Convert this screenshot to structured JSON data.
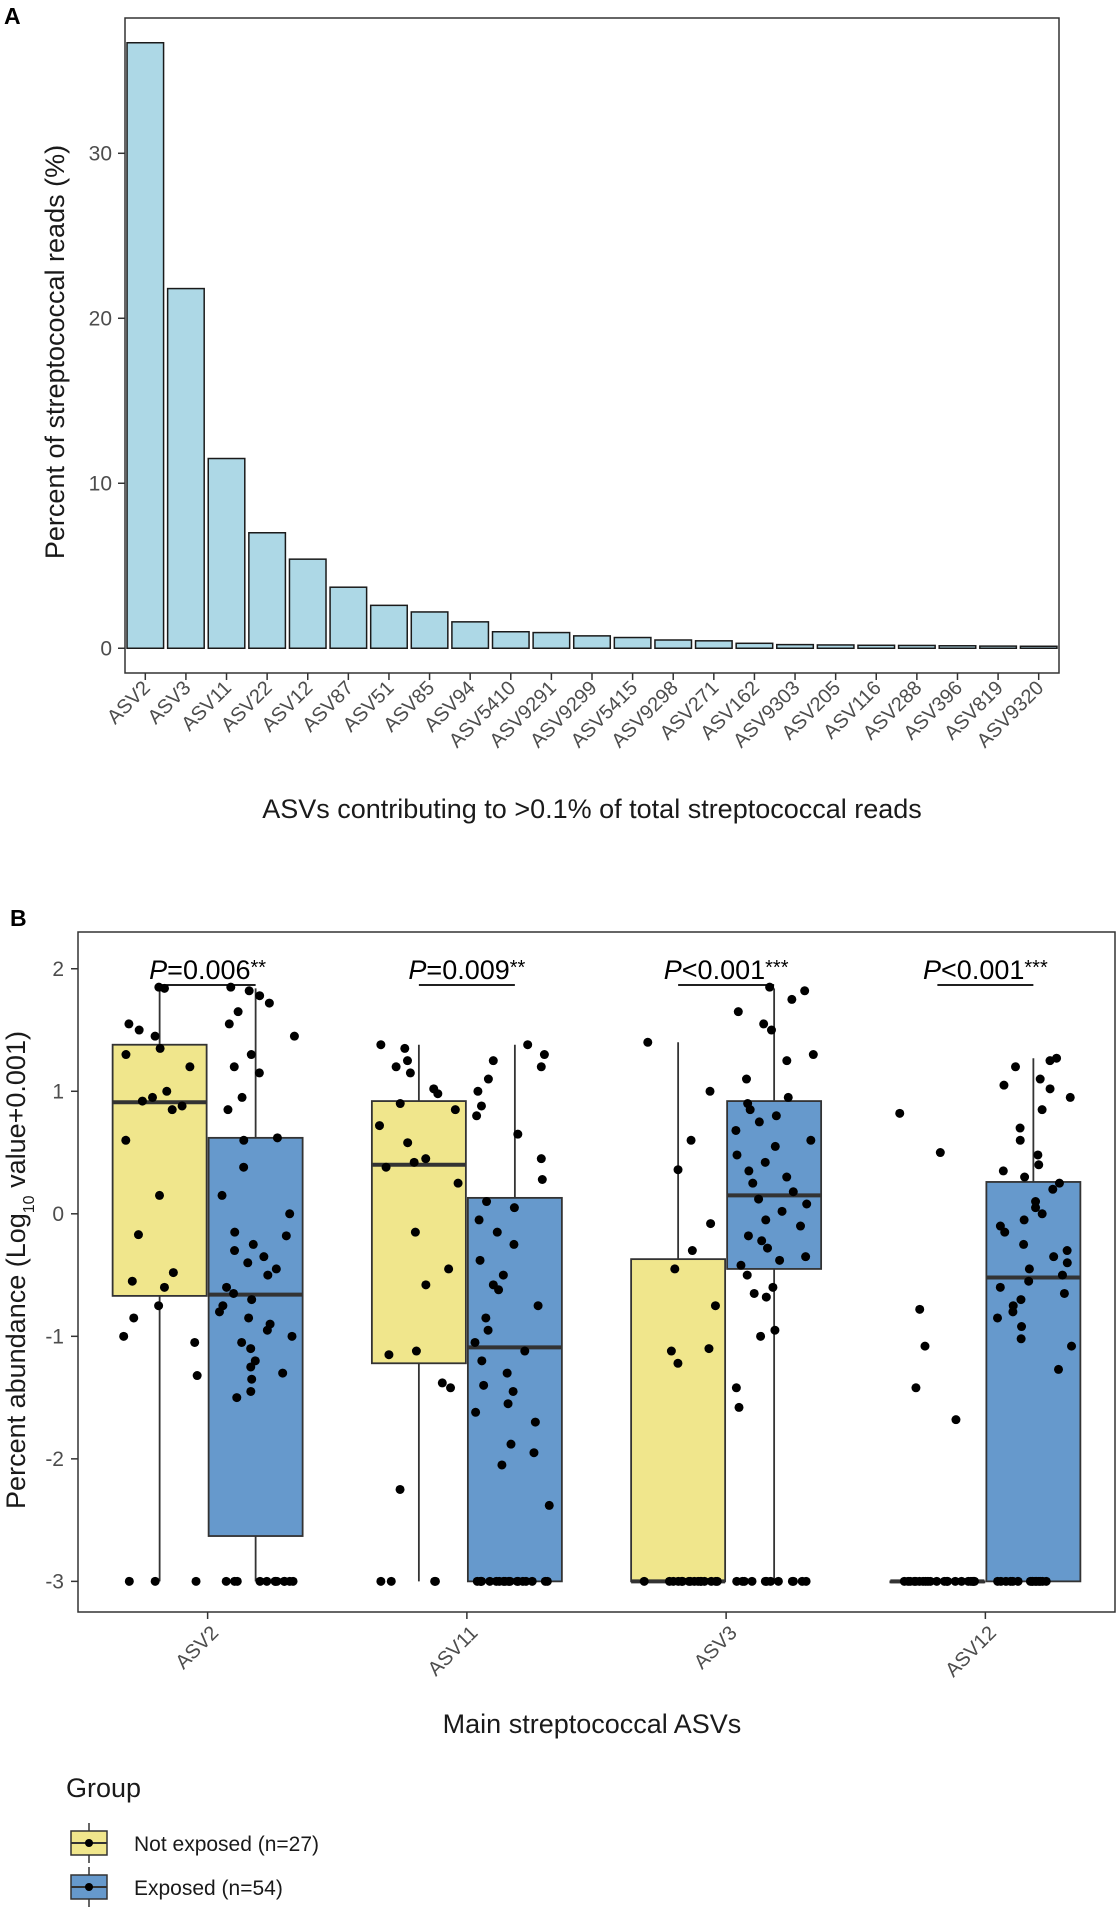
{
  "chart_data": [
    {
      "panel": "A",
      "type": "bar",
      "categories": [
        "ASV2",
        "ASV3",
        "ASV11",
        "ASV22",
        "ASV12",
        "ASV87",
        "ASV51",
        "ASV85",
        "ASV94",
        "ASV5410",
        "ASV9291",
        "ASV9299",
        "ASV5415",
        "ASV9298",
        "ASV271",
        "ASV162",
        "ASV9303",
        "ASV205",
        "ASV116",
        "ASV288",
        "ASV396",
        "ASV819",
        "ASV9320"
      ],
      "values": [
        36.7,
        21.8,
        11.5,
        7.0,
        5.4,
        3.7,
        2.6,
        2.2,
        1.6,
        1.0,
        0.95,
        0.75,
        0.65,
        0.5,
        0.45,
        0.3,
        0.22,
        0.2,
        0.18,
        0.17,
        0.15,
        0.13,
        0.12
      ],
      "xlabel": "ASVs contributing to >0.1% of total streptococcal reads",
      "ylabel": "Percent of streptococcal reads (%)",
      "ylim": [
        -1.5,
        38.2
      ],
      "yticks": [
        0,
        10,
        20,
        30
      ],
      "color": "#add8e6"
    },
    {
      "panel": "B",
      "type": "box",
      "categories": [
        "ASV2",
        "ASV11",
        "ASV3",
        "ASV12"
      ],
      "xlabel": "Main streptococcal ASVs",
      "ylabel_prefix": "Percent abundance (Log",
      "ylabel_sub": "10",
      "ylabel_suffix": " value+0.001)",
      "ylim": [
        -3.25,
        2.3
      ],
      "yticks": [
        -3,
        -2,
        -1,
        0,
        1,
        2
      ],
      "annotations": [
        {
          "p": "P",
          "text": "=0.006",
          "stars": "**"
        },
        {
          "p": "P",
          "text": "=0.009",
          "stars": "**"
        },
        {
          "p": "P",
          "text": "<0.001",
          "stars": "***"
        },
        {
          "p": "P",
          "text": "<0.001",
          "stars": "***"
        }
      ],
      "series": [
        {
          "name": "Not exposed (n=27)",
          "color": "#f0e68c",
          "boxes": [
            {
              "whisker_low": -3.0,
              "q1": -0.67,
              "median": 0.91,
              "q3": 1.38,
              "whisker_high": 1.84
            },
            {
              "whisker_low": -3.0,
              "q1": -1.22,
              "median": 0.4,
              "q3": 0.92,
              "whisker_high": 1.38
            },
            {
              "whisker_low": -3.0,
              "q1": -3.0,
              "median": -3.0,
              "q3": -0.37,
              "whisker_high": 1.4
            },
            {
              "whisker_low": -3.0,
              "q1": -3.0,
              "median": -3.0,
              "q3": -3.0,
              "whisker_high": -3.0
            }
          ],
          "points": [
            [
              1.85,
              1.84,
              1.55,
              1.5,
              1.45,
              1.35,
              1.3,
              1.2,
              1.0,
              0.95,
              0.92,
              0.88,
              0.85,
              0.6,
              0.15,
              -0.17,
              -0.48,
              -0.55,
              -0.6,
              -0.75,
              -0.85,
              -1.0,
              -1.05,
              -1.32,
              -3.0,
              -3.0,
              -3.0
            ],
            [
              1.38,
              1.35,
              1.25,
              1.2,
              1.15,
              1.02,
              0.98,
              0.9,
              0.85,
              0.72,
              0.58,
              0.45,
              0.42,
              0.38,
              0.25,
              -0.15,
              -0.45,
              -0.58,
              -1.12,
              -1.15,
              -1.38,
              -1.42,
              -2.25,
              -3.0,
              -3.0,
              -3.0,
              -3.0
            ],
            [
              1.4,
              1.0,
              0.6,
              0.36,
              -0.08,
              -0.3,
              -0.45,
              -0.75,
              -1.1,
              -1.12,
              -1.22,
              -3.0,
              -3.0,
              -3.0,
              -3.0,
              -3.0,
              -3.0,
              -3.0,
              -3.0,
              -3.0,
              -3.0,
              -3.0,
              -3.0,
              -3.0,
              -3.0,
              -3.0,
              -3.0
            ],
            [
              0.82,
              0.5,
              -0.78,
              -1.08,
              -1.42,
              -1.68,
              -3.0,
              -3.0,
              -3.0,
              -3.0,
              -3.0,
              -3.0,
              -3.0,
              -3.0,
              -3.0,
              -3.0,
              -3.0,
              -3.0,
              -3.0,
              -3.0,
              -3.0,
              -3.0,
              -3.0,
              -3.0,
              -3.0,
              -3.0,
              -3.0
            ]
          ]
        },
        {
          "name": "Exposed (n=54)",
          "color": "#6699cc",
          "boxes": [
            {
              "whisker_low": -3.0,
              "q1": -2.63,
              "median": -0.66,
              "q3": 0.62,
              "whisker_high": 1.84
            },
            {
              "whisker_low": -3.0,
              "q1": -3.0,
              "median": -1.09,
              "q3": 0.13,
              "whisker_high": 1.38
            },
            {
              "whisker_low": -3.0,
              "q1": -0.45,
              "median": 0.15,
              "q3": 0.92,
              "whisker_high": 1.84
            },
            {
              "whisker_low": -3.0,
              "q1": -3.0,
              "median": -0.52,
              "q3": 0.26,
              "whisker_high": 1.27
            }
          ],
          "points": [
            [
              1.85,
              1.82,
              1.78,
              1.72,
              1.65,
              1.55,
              1.45,
              1.3,
              1.2,
              1.15,
              0.95,
              0.85,
              0.62,
              0.6,
              0.38,
              0.15,
              0.0,
              -0.15,
              -0.18,
              -0.25,
              -0.3,
              -0.35,
              -0.4,
              -0.45,
              -0.5,
              -0.6,
              -0.65,
              -0.7,
              -0.75,
              -0.8,
              -0.85,
              -0.9,
              -0.95,
              -1.0,
              -1.05,
              -1.1,
              -1.2,
              -1.25,
              -1.3,
              -1.35,
              -1.45,
              -1.5,
              -3.0,
              -3.0,
              -3.0,
              -3.0,
              -3.0,
              -3.0,
              -3.0,
              -3.0,
              -3.0,
              -3.0,
              -3.0,
              -3.0
            ],
            [
              1.38,
              1.3,
              1.25,
              1.2,
              1.1,
              1.0,
              0.88,
              0.8,
              0.65,
              0.45,
              0.28,
              0.1,
              0.05,
              -0.05,
              -0.15,
              -0.25,
              -0.38,
              -0.5,
              -0.58,
              -0.62,
              -0.75,
              -0.85,
              -0.95,
              -1.05,
              -1.12,
              -1.2,
              -1.3,
              -1.4,
              -1.45,
              -1.55,
              -1.62,
              -1.7,
              -1.88,
              -1.95,
              -2.05,
              -2.38,
              -3.0,
              -3.0,
              -3.0,
              -3.0,
              -3.0,
              -3.0,
              -3.0,
              -3.0,
              -3.0,
              -3.0,
              -3.0,
              -3.0,
              -3.0,
              -3.0,
              -3.0,
              -3.0,
              -3.0,
              -3.0
            ],
            [
              1.85,
              1.82,
              1.75,
              1.65,
              1.55,
              1.5,
              1.3,
              1.25,
              1.1,
              0.95,
              0.9,
              0.85,
              0.8,
              0.75,
              0.68,
              0.6,
              0.55,
              0.48,
              0.42,
              0.35,
              0.3,
              0.25,
              0.18,
              0.12,
              0.08,
              0.02,
              -0.05,
              -0.1,
              -0.18,
              -0.22,
              -0.28,
              -0.35,
              -0.38,
              -0.42,
              -0.5,
              -0.6,
              -0.65,
              -0.68,
              -0.95,
              -1.0,
              -1.42,
              -1.58,
              -3.0,
              -3.0,
              -3.0,
              -3.0,
              -3.0,
              -3.0,
              -3.0,
              -3.0,
              -3.0,
              -3.0,
              -3.0,
              -3.0
            ],
            [
              1.27,
              1.25,
              1.2,
              1.1,
              1.05,
              1.02,
              0.95,
              0.85,
              0.7,
              0.6,
              0.48,
              0.4,
              0.35,
              0.3,
              0.25,
              0.2,
              0.1,
              0.05,
              0.0,
              -0.05,
              -0.1,
              -0.15,
              -0.25,
              -0.3,
              -0.35,
              -0.4,
              -0.45,
              -0.5,
              -0.55,
              -0.6,
              -0.65,
              -0.7,
              -0.75,
              -0.8,
              -0.85,
              -0.92,
              -1.02,
              -1.08,
              -1.27,
              -3.0,
              -3.0,
              -3.0,
              -3.0,
              -3.0,
              -3.0,
              -3.0,
              -3.0,
              -3.0,
              -3.0,
              -3.0,
              -3.0,
              -3.0,
              -3.0,
              -3.0
            ]
          ]
        }
      ],
      "legend": {
        "title": "Group",
        "position": "bottom-left"
      }
    }
  ]
}
